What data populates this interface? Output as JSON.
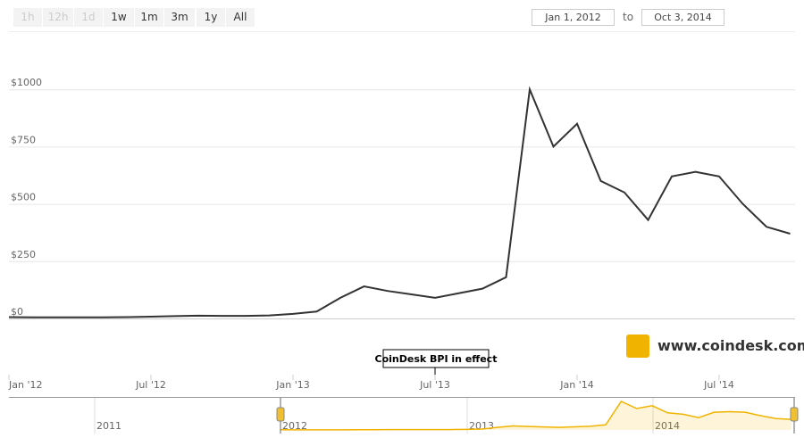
{
  "range_selector": {
    "buttons": [
      "1h",
      "12h",
      "1d",
      "1w",
      "1m",
      "3m",
      "1y",
      "All"
    ],
    "from": "Jan 1, 2012",
    "to_label": "to",
    "to": "Oct 3, 2014"
  },
  "chart_data": {
    "type": "line",
    "x": [
      "2012-01",
      "2012-02",
      "2012-03",
      "2012-04",
      "2012-05",
      "2012-06",
      "2012-07",
      "2012-08",
      "2012-09",
      "2012-10",
      "2012-11",
      "2012-12",
      "2013-01",
      "2013-02",
      "2013-03",
      "2013-04",
      "2013-05",
      "2013-06",
      "2013-07",
      "2013-08",
      "2013-09",
      "2013-10",
      "2013-11",
      "2013-12",
      "2014-01",
      "2014-02",
      "2014-03",
      "2014-04",
      "2014-05",
      "2014-06",
      "2014-07",
      "2014-08",
      "2014-09",
      "2014-10"
    ],
    "values": [
      6,
      5,
      5,
      5,
      5,
      6,
      8,
      10,
      12,
      11,
      11,
      13,
      20,
      30,
      90,
      140,
      120,
      105,
      90,
      110,
      130,
      180,
      1000,
      750,
      850,
      600,
      550,
      430,
      620,
      640,
      620,
      500,
      400,
      370
    ],
    "color": "#333333",
    "ylim": [
      0,
      1250
    ],
    "yticks": [
      {
        "value": 0,
        "label": "$0"
      },
      {
        "value": 250,
        "label": "$250"
      },
      {
        "value": 500,
        "label": "$500"
      },
      {
        "value": 750,
        "label": "$750"
      },
      {
        "value": 1000,
        "label": "$1000"
      }
    ],
    "xticks": [
      {
        "value": "2012-01",
        "label": "Jan '12"
      },
      {
        "value": "2012-07",
        "label": "Jul '12"
      },
      {
        "value": "2013-01",
        "label": "Jan '13"
      },
      {
        "value": "2013-07",
        "label": "Jul '13"
      },
      {
        "value": "2014-01",
        "label": "Jan '14"
      },
      {
        "value": "2014-07",
        "label": "Jul '14"
      }
    ],
    "grid": true,
    "annotations": [
      {
        "x": "2013-07",
        "text": "CoinDesk BPI in effect"
      }
    ]
  },
  "navigator": {
    "labels": [
      "2011",
      "2012",
      "2013",
      "2014"
    ],
    "color": "#f0b400"
  },
  "brand": "www.coindesk.com"
}
